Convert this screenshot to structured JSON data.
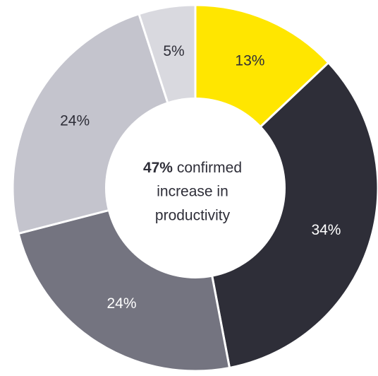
{
  "chart_data": {
    "type": "donut",
    "values": [
      13,
      34,
      24,
      24,
      5
    ],
    "value_labels": [
      "13%",
      "34%",
      "24%",
      "24%",
      "5%"
    ],
    "colors": [
      "#ffe600",
      "#2e2e38",
      "#747480",
      "#c4c4cd",
      "#d9d9df"
    ],
    "label_colors": [
      "#2e2e38",
      "#ffffff",
      "#ffffff",
      "#2e2e38",
      "#2e2e38"
    ],
    "center_label": {
      "bold": "47%",
      "lines": [
        "confirmed",
        "increase in",
        "productivity"
      ]
    }
  }
}
